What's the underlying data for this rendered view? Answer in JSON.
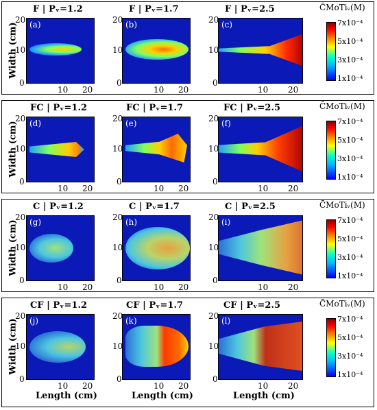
{
  "rows": [
    {
      "id": "F",
      "titles": [
        "F | Pᵥ=1.2",
        "F | Pᵥ=1.7",
        "F | Pᵥ=2.5"
      ],
      "labels": [
        "(a)",
        "(b)",
        "(c)"
      ]
    },
    {
      "id": "FC",
      "titles": [
        "FC | Pᵥ=1.2",
        "FC | Pᵥ=1.7",
        "FC | Pᵥ=2.5"
      ],
      "labels": [
        "(d)",
        "(e)",
        "(f)"
      ]
    },
    {
      "id": "C",
      "titles": [
        "C | Pᵥ=1.2",
        "C | Pᵥ=1.7",
        "C | Pᵥ=2.5"
      ],
      "labels": [
        "(g)",
        "(h)",
        "(i)"
      ]
    },
    {
      "id": "CF",
      "titles": [
        "CF | Pᵥ=1.2",
        "CF | Pᵥ=1.7",
        "CF | Pᵥ=2.5"
      ],
      "labels": [
        "(j)",
        "(k)",
        "(l)"
      ]
    }
  ],
  "y_axis_label": "Width (cm)",
  "x_axis_label": "Length (cm)",
  "y_ticks": [
    "20",
    "10",
    "0"
  ],
  "x_ticks": [
    "0",
    "10",
    "20"
  ],
  "colorbar": {
    "title": "C̄MoTiᵥ(M)",
    "ticks": [
      "7x10⁻⁴",
      "5x10⁻⁴",
      "3x10⁻⁴",
      "1x10⁻⁴"
    ]
  },
  "colors": {
    "background_field": "#0b1ab6",
    "frame": "#000000"
  }
}
